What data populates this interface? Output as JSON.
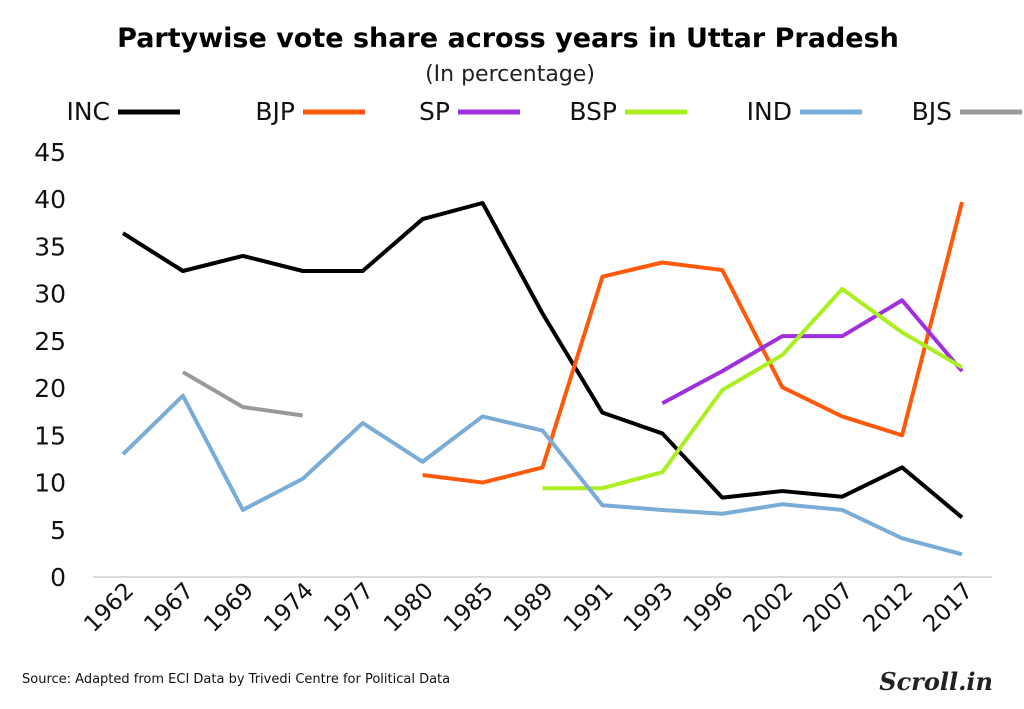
{
  "chart_data": {
    "type": "line",
    "title": "Partywise vote share across years in Uttar Pradesh",
    "subtitle": "(In percentage)",
    "categories": [
      "1962",
      "1967",
      "1969",
      "1974",
      "1977",
      "1980",
      "1985",
      "1989",
      "1991",
      "1993",
      "1996",
      "2002",
      "2007",
      "2012",
      "2017"
    ],
    "ylim": [
      0,
      45
    ],
    "yticks": [
      0,
      5,
      10,
      15,
      20,
      25,
      30,
      35,
      40,
      45
    ],
    "grid": false,
    "legend_position": "top",
    "series": [
      {
        "name": "INC",
        "color": "#000000",
        "values": [
          36.4,
          32.4,
          34.0,
          32.4,
          32.4,
          37.9,
          39.6,
          27.9,
          17.4,
          15.2,
          8.4,
          9.1,
          8.5,
          11.6,
          6.3
        ]
      },
      {
        "name": "BJP",
        "color": "#ff5a0a",
        "values": [
          null,
          null,
          null,
          null,
          null,
          10.8,
          10.0,
          11.6,
          31.8,
          33.3,
          32.5,
          20.1,
          17.0,
          15.0,
          39.7
        ]
      },
      {
        "name": "SP",
        "color": "#a02fde",
        "values": [
          null,
          null,
          null,
          null,
          null,
          null,
          null,
          null,
          null,
          18.4,
          21.8,
          25.5,
          25.5,
          29.3,
          21.8
        ]
      },
      {
        "name": "BSP",
        "color": "#aaef1f",
        "values": [
          null,
          null,
          null,
          null,
          null,
          null,
          null,
          9.4,
          9.4,
          11.1,
          19.8,
          23.5,
          30.5,
          25.9,
          22.2
        ]
      },
      {
        "name": "IND",
        "color": "#79acd6",
        "values": [
          13.0,
          19.2,
          7.1,
          10.4,
          16.3,
          12.2,
          17.0,
          15.5,
          7.6,
          7.1,
          6.7,
          7.7,
          7.1,
          4.1,
          2.4
        ]
      },
      {
        "name": "BJS",
        "color": "#999999",
        "values": [
          null,
          21.7,
          18.0,
          17.1,
          null,
          null,
          null,
          null,
          null,
          null,
          null,
          null,
          null,
          null,
          null
        ]
      }
    ]
  },
  "footer": {
    "source": "Source: Adapted from ECI Data by Trivedi Centre for Political Data",
    "logo": "Scroll.in"
  }
}
